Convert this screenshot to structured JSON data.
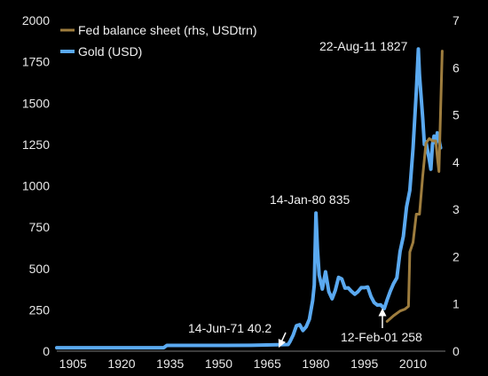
{
  "chart_data": {
    "type": "line",
    "legend": {
      "placement": "top-left",
      "entries": [
        {
          "label": "Fed balance sheet (rhs, USDtrn)",
          "color": "#9e7d3e"
        },
        {
          "label": "Gold (USD)",
          "color": "#5aa9f0"
        }
      ]
    },
    "x_axis": {
      "range": [
        1900,
        2020
      ],
      "ticks": [
        1905,
        1920,
        1935,
        1950,
        1965,
        1980,
        1995,
        2010
      ]
    },
    "y_left": {
      "range": [
        0,
        2000
      ],
      "ticks": [
        0,
        250,
        500,
        750,
        1000,
        1250,
        1500,
        1750,
        2000
      ]
    },
    "y_right": {
      "range": [
        0,
        7
      ],
      "ticks": [
        0,
        1,
        2,
        3,
        4,
        5,
        6,
        7
      ]
    },
    "grid": false,
    "series": [
      {
        "name": "Gold (USD)",
        "axis": "left",
        "color": "#5aa9f0",
        "x": [
          1900,
          1933,
          1934,
          1945,
          1950,
          1960,
          1968,
          1971.45,
          1972,
          1973,
          1974,
          1975,
          1976,
          1977,
          1978,
          1979,
          1979.5,
          1980.04,
          1980.5,
          1981,
          1982,
          1983,
          1984,
          1985,
          1986,
          1987,
          1988,
          1989,
          1990,
          1991,
          1992,
          1993,
          1994,
          1995,
          1996,
          1997,
          1998,
          1999,
          2000,
          2001.12,
          2002,
          2003,
          2004,
          2005,
          2006,
          2007,
          2008,
          2009,
          2010,
          2011,
          2011.64,
          2012,
          2013,
          2013.5,
          2014,
          2015,
          2015.5,
          2016,
          2016.5,
          2017,
          2017.5,
          2018,
          2018.5
        ],
        "y": [
          20.67,
          20.67,
          35,
          35,
          35,
          35.5,
          39,
          40.2,
          58,
          97,
          154,
          160,
          125,
          148,
          193,
          306,
          400,
          835,
          620,
          460,
          376,
          480,
          360,
          317,
          368,
          446,
          437,
          381,
          383,
          362,
          344,
          360,
          384,
          384,
          388,
          331,
          294,
          279,
          280,
          258,
          310,
          363,
          409,
          444,
          603,
          695,
          872,
          972,
          1225,
          1571,
          1827,
          1669,
          1411,
          1250,
          1266,
          1160,
          1100,
          1250,
          1300,
          1260,
          1320,
          1280,
          1230
        ]
      },
      {
        "name": "Fed balance sheet (rhs, USDtrn)",
        "axis": "right",
        "color": "#9e7d3e",
        "x": [
          2002,
          2004,
          2006,
          2007.5,
          2008.6,
          2009,
          2010,
          2011,
          2012,
          2013,
          2014,
          2015,
          2016,
          2017,
          2017.5,
          2018,
          2019
        ],
        "y": [
          0.63,
          0.75,
          0.85,
          0.89,
          0.95,
          2.1,
          2.3,
          2.9,
          2.9,
          3.7,
          4.4,
          4.5,
          4.45,
          4.45,
          4.1,
          3.8,
          6.35
        ]
      }
    ],
    "annotations": [
      {
        "text": "14-Jun-71 40.2"
      },
      {
        "text": "14-Jan-80 835"
      },
      {
        "text": "12-Feb-01 258"
      },
      {
        "text": "22-Aug-11 1827"
      }
    ]
  }
}
